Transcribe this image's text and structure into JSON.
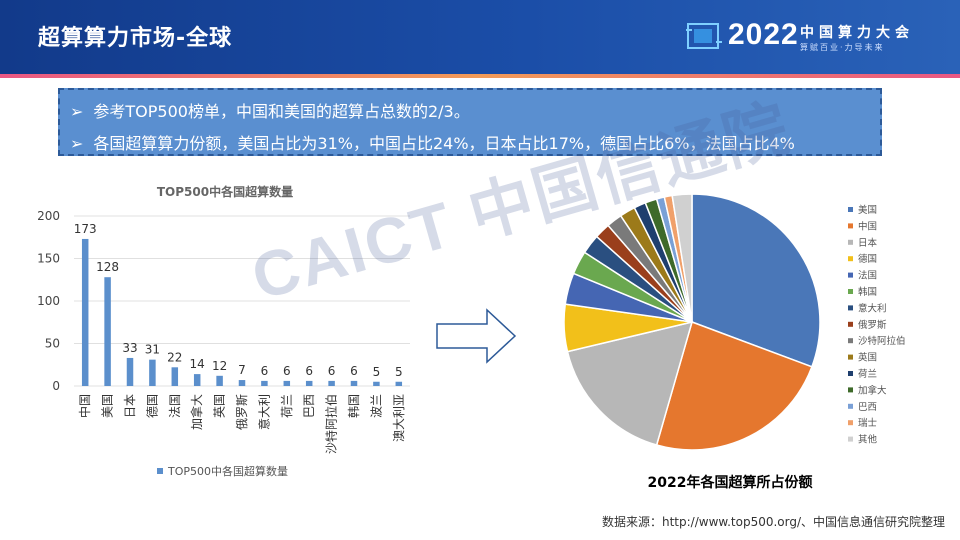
{
  "header": {
    "title": "超算算力市场-全球"
  },
  "brand": {
    "year": "2022",
    "name": "中国算力大会",
    "slogan": "算赋百业·力导未来"
  },
  "bullets": [
    "参考TOP500榜单，中国和美国的超算占总数的2/3。",
    "各国超算算力份额，美国占比为31%，中国占比24%，日本占比17%，德国占比6%，法国占比4%"
  ],
  "watermark": "CAICT 中国信通院",
  "source": "数据来源：http://www.top500.org/、中国信息通信研究院整理",
  "chart_data": [
    {
      "type": "bar",
      "title": "TOP500中各国超算数量",
      "categories": [
        "中国",
        "美国",
        "日本",
        "德国",
        "法国",
        "加拿大",
        "英国",
        "俄罗斯",
        "意大利",
        "荷兰",
        "巴西",
        "沙特阿拉伯",
        "韩国",
        "波兰",
        "澳大利亚"
      ],
      "series": [
        {
          "name": "TOP500中各国超算数量",
          "values": [
            173,
            128,
            33,
            31,
            22,
            14,
            12,
            7,
            6,
            6,
            6,
            6,
            6,
            5,
            5
          ],
          "color": "#5b8fcc"
        }
      ],
      "ylim": [
        0,
        200
      ],
      "yticks": [
        0,
        50,
        100,
        150,
        200
      ],
      "grid": true,
      "legend": "bottom"
    },
    {
      "type": "pie",
      "title": "2022年各国超算所占份额",
      "legend": "right",
      "slices": [
        {
          "label": "美国",
          "value": 31,
          "color": "#4a77b8"
        },
        {
          "label": "中国",
          "value": 24,
          "color": "#e5772e"
        },
        {
          "label": "日本",
          "value": 17,
          "color": "#b7b7b7"
        },
        {
          "label": "德国",
          "value": 6,
          "color": "#f2c01a"
        },
        {
          "label": "法国",
          "value": 4,
          "color": "#4566b3"
        },
        {
          "label": "韩国",
          "value": 3,
          "color": "#6aa84f"
        },
        {
          "label": "意大利",
          "value": 2.5,
          "color": "#2a4f80"
        },
        {
          "label": "俄罗斯",
          "value": 2,
          "color": "#9a3f1c"
        },
        {
          "label": "沙特阿拉伯",
          "value": 2,
          "color": "#7a7a7a"
        },
        {
          "label": "英国",
          "value": 2,
          "color": "#9c7a1a"
        },
        {
          "label": "荷兰",
          "value": 1.5,
          "color": "#1f3f6e"
        },
        {
          "label": "加拿大",
          "value": 1.5,
          "color": "#3e6a2a"
        },
        {
          "label": "巴西",
          "value": 1,
          "color": "#7aa0d6"
        },
        {
          "label": "瑞士",
          "value": 1,
          "color": "#f0a06a"
        },
        {
          "label": "其他",
          "value": 2.5,
          "color": "#d0d0d0"
        }
      ]
    }
  ]
}
